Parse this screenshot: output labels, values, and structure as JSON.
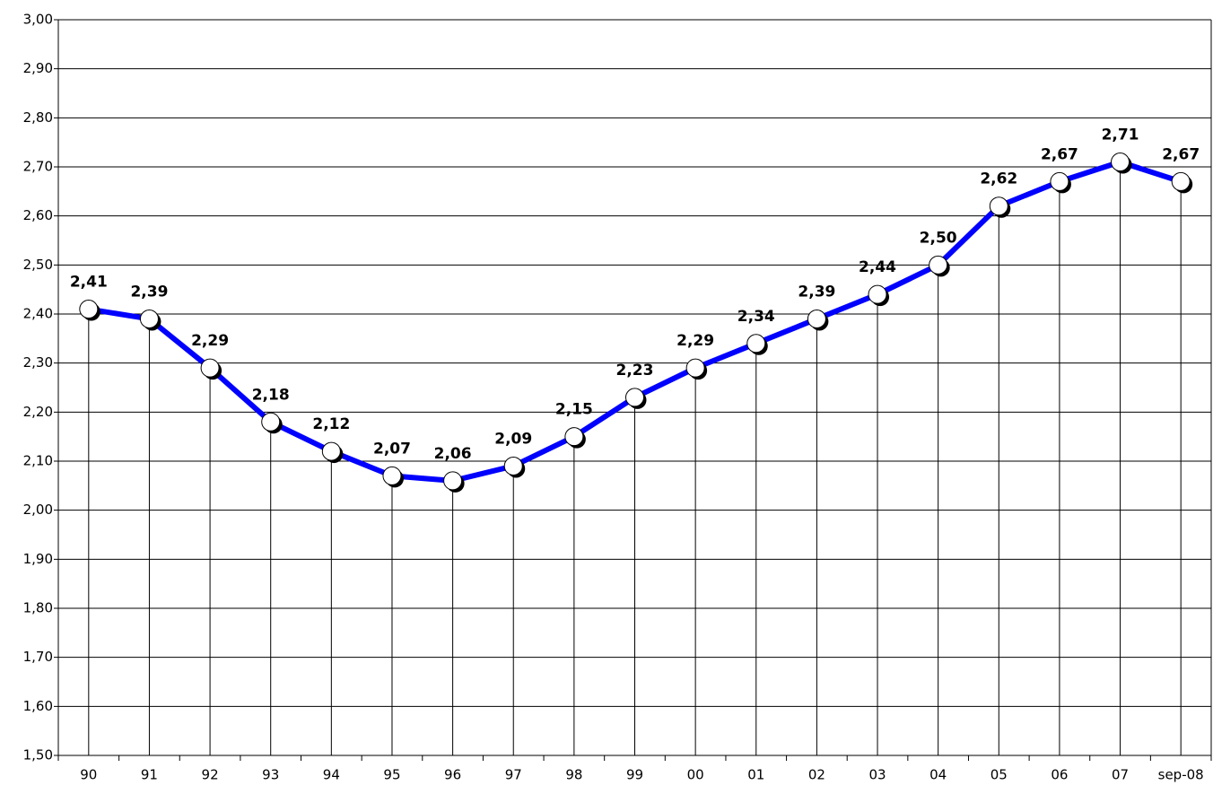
{
  "chart_data": {
    "type": "line",
    "categories": [
      "90",
      "91",
      "92",
      "93",
      "94",
      "95",
      "96",
      "97",
      "98",
      "99",
      "00",
      "01",
      "02",
      "03",
      "04",
      "05",
      "06",
      "07",
      "sep-08"
    ],
    "series": [
      {
        "color": "#0000ff",
        "values": [
          2.41,
          2.39,
          2.29,
          2.18,
          2.12,
          2.07,
          2.06,
          2.09,
          2.15,
          2.23,
          2.29,
          2.34,
          2.39,
          2.44,
          2.5,
          2.62,
          2.67,
          2.71,
          2.67
        ],
        "value_labels": [
          "2,41",
          "2,39",
          "2,29",
          "2,18",
          "2,12",
          "2,07",
          "2,06",
          "2,09",
          "2,15",
          "2,23",
          "2,29",
          "2,34",
          "2,39",
          "2,44",
          "2,50",
          "2,62",
          "2,67",
          "2,71",
          "2,67"
        ]
      }
    ],
    "ylim": [
      1.5,
      3.0
    ],
    "yticks": [
      {
        "value": 1.5,
        "label": "1,50"
      },
      {
        "value": 1.6,
        "label": "1,60"
      },
      {
        "value": 1.7,
        "label": "1,70"
      },
      {
        "value": 1.8,
        "label": "1,80"
      },
      {
        "value": 1.9,
        "label": "1,90"
      },
      {
        "value": 2.0,
        "label": "2,00"
      },
      {
        "value": 2.1,
        "label": "2,10"
      },
      {
        "value": 2.2,
        "label": "2,20"
      },
      {
        "value": 2.3,
        "label": "2,30"
      },
      {
        "value": 2.4,
        "label": "2,40"
      },
      {
        "value": 2.5,
        "label": "2,50"
      },
      {
        "value": 2.6,
        "label": "2,60"
      },
      {
        "value": 2.7,
        "label": "2,70"
      },
      {
        "value": 2.8,
        "label": "2,80"
      },
      {
        "value": 2.9,
        "label": "2,90"
      },
      {
        "value": 3.0,
        "label": "3,00"
      }
    ],
    "grid": true,
    "drop_lines": true
  }
}
